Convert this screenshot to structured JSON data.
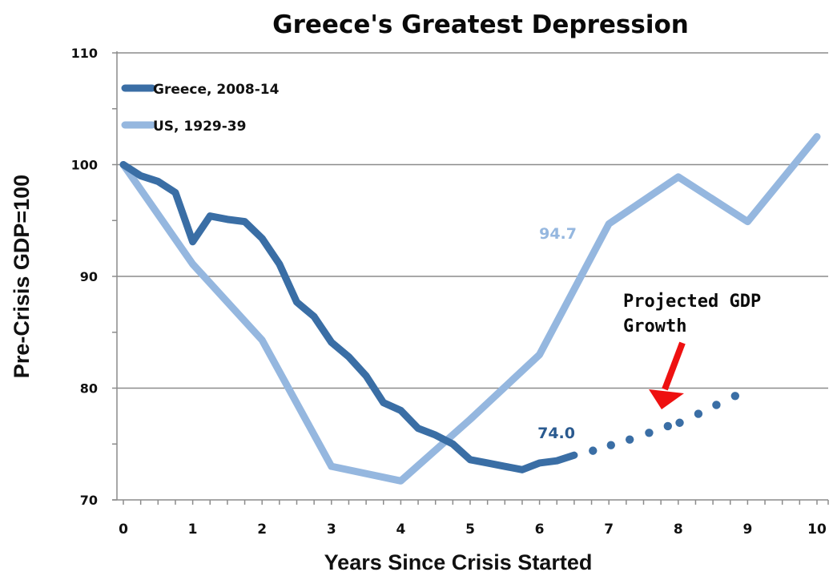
{
  "chart_data": {
    "type": "line",
    "title": "Greece's Greatest Depression",
    "xlabel": "Years Since Crisis Started",
    "ylabel": "Pre-Crisis GDP=100",
    "xlim": [
      0,
      10
    ],
    "ylim": [
      70,
      110
    ],
    "x_ticks": [
      "0",
      "1",
      "2",
      "3",
      "4",
      "5",
      "6",
      "7",
      "8",
      "9",
      "10"
    ],
    "y_ticks": [
      "70",
      "80",
      "90",
      "100",
      "110"
    ],
    "x_minor_tick_step": 0.25,
    "y_minor_tick_step": 5,
    "grid": "horizontal major",
    "legend_position": "top-left",
    "series": [
      {
        "name": "Greece, 2008-14",
        "color": "#3a6ea5",
        "style": "solid",
        "x": [
          0,
          0.25,
          0.5,
          0.75,
          1.0,
          1.25,
          1.5,
          1.75,
          2.0,
          2.25,
          2.5,
          2.75,
          3.0,
          3.25,
          3.5,
          3.75,
          4.0,
          4.25,
          4.5,
          4.75,
          5.0,
          5.25,
          5.5,
          5.75,
          6.0,
          6.25,
          6.5
        ],
        "values": [
          100,
          99.0,
          98.5,
          97.5,
          93.1,
          95.4,
          95.1,
          94.9,
          93.4,
          91.1,
          87.7,
          86.4,
          84.1,
          82.8,
          81.1,
          78.7,
          78.0,
          76.4,
          75.8,
          75.0,
          73.6,
          73.3,
          73.0,
          72.7,
          73.3,
          73.5,
          74.0
        ]
      },
      {
        "name": "US, 1929-39",
        "color": "#95b7df",
        "style": "solid",
        "x": [
          0,
          1,
          2,
          3,
          4,
          5,
          6,
          7,
          8,
          9,
          10
        ],
        "values": [
          100,
          91.1,
          84.3,
          73.0,
          71.7,
          77.2,
          83.0,
          94.7,
          98.9,
          94.9,
          102.5
        ]
      },
      {
        "name": "Greece projected",
        "color": "#3a6ea5",
        "style": "dotted",
        "x": [
          6.77,
          7.03,
          7.3,
          7.58,
          7.85,
          8.02,
          8.29,
          8.55,
          8.82
        ],
        "values": [
          74.4,
          74.9,
          75.4,
          76.0,
          76.6,
          76.9,
          77.7,
          78.5,
          79.3
        ]
      }
    ],
    "data_labels": [
      {
        "text": "94.7",
        "series": "US, 1929-39",
        "x": 7,
        "y": 94.7
      },
      {
        "text": "74.0",
        "series": "Greece, 2008-14",
        "x": 6.5,
        "y": 74.0
      }
    ],
    "annotations": [
      {
        "lines": [
          "Projected GDP",
          "Growth"
        ],
        "arrow_color": "#ee1111",
        "points_to": "Greece projected"
      }
    ]
  }
}
